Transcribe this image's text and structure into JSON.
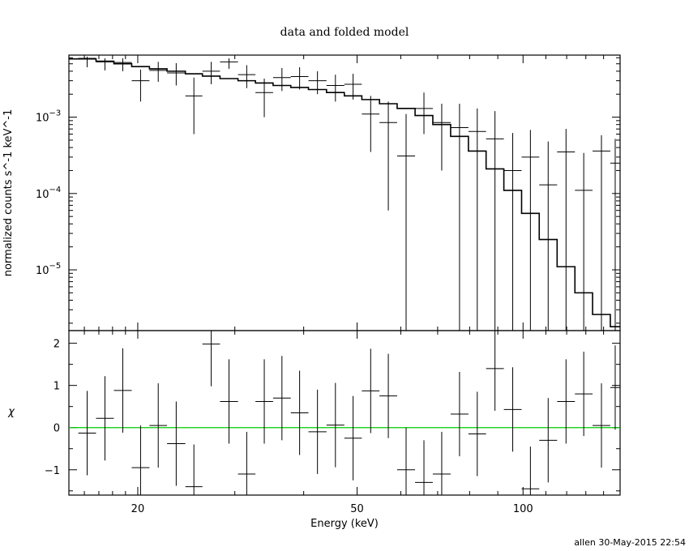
{
  "chart_data": [
    {
      "panel": "top",
      "type": "scatter",
      "title": "data and folded model",
      "ylabel": "normalized counts s^-1 keV^-1",
      "xscale": "log",
      "yscale": "log",
      "xlim": [
        15,
        150
      ],
      "ylim": [
        1.6e-06,
        0.0065
      ],
      "ytick_labels": [
        {
          "value": 0.001,
          "mant": "10",
          "exp": "−3"
        },
        {
          "value": 0.0001,
          "mant": "10",
          "exp": "−4"
        },
        {
          "value": 1e-05,
          "mant": "10",
          "exp": "−5"
        }
      ],
      "data_points": [
        [
          15.6,
          16.8,
          0.0059,
          0.0045,
          0.0062
        ],
        [
          16.8,
          18.1,
          0.0053,
          0.0041,
          0.0059
        ],
        [
          18.1,
          19.5,
          0.0052,
          0.004,
          0.0059
        ],
        [
          19.5,
          21.0,
          0.003,
          0.0016,
          0.0042
        ],
        [
          21.0,
          22.6,
          0.0041,
          0.0029,
          0.0053
        ],
        [
          22.6,
          24.4,
          0.0038,
          0.0026,
          0.0051
        ],
        [
          24.4,
          26.2,
          0.0019,
          0.0006,
          0.0033
        ],
        [
          26.2,
          28.2,
          0.004,
          0.0027,
          0.0053
        ],
        [
          28.2,
          30.4,
          0.0053,
          0.0043,
          0.0059
        ],
        [
          30.4,
          32.7,
          0.0036,
          0.0024,
          0.0048
        ],
        [
          32.7,
          35.2,
          0.0021,
          0.001,
          0.0032
        ],
        [
          35.2,
          37.9,
          0.0033,
          0.0022,
          0.0044
        ],
        [
          37.9,
          40.8,
          0.0034,
          0.0023,
          0.0045
        ],
        [
          40.8,
          44.0,
          0.003,
          0.002,
          0.004
        ],
        [
          44.0,
          47.4,
          0.0026,
          0.0016,
          0.0036
        ],
        [
          47.4,
          51.0,
          0.0027,
          0.0017,
          0.0037
        ],
        [
          51.0,
          54.9,
          0.0011,
          0.00035,
          0.0019
        ],
        [
          54.9,
          59.1,
          0.00085,
          6e-05,
          0.0016
        ],
        [
          59.1,
          63.7,
          0.00031,
          1.6e-06,
          0.0011
        ],
        [
          63.7,
          68.6,
          0.0013,
          0.0006,
          0.0021
        ],
        [
          68.6,
          73.9,
          0.00085,
          0.0002,
          0.0015
        ],
        [
          73.9,
          79.6,
          0.00073,
          1.6e-06,
          0.0015
        ],
        [
          79.6,
          85.7,
          0.00065,
          1.6e-06,
          0.0013
        ],
        [
          85.7,
          92.3,
          0.00052,
          1.6e-06,
          0.0012
        ],
        [
          92.3,
          99.4,
          0.0002,
          1.6e-06,
          0.00062
        ],
        [
          99.4,
          107.0,
          0.0003,
          1.6e-06,
          0.00068
        ],
        [
          107.0,
          115.3,
          0.00013,
          1.6e-06,
          0.00048
        ],
        [
          115.3,
          124.2,
          0.00035,
          1.6e-06,
          0.0007
        ],
        [
          124.2,
          133.7,
          0.00011,
          1.6e-06,
          0.00034
        ],
        [
          133.7,
          144.0,
          0.00036,
          1.6e-06,
          0.00058
        ],
        [
          144.0,
          150.0,
          0.00025,
          1.6e-06,
          0.00052
        ]
      ],
      "model_steps": [
        [
          15.0,
          0.0058
        ],
        [
          16.8,
          0.0054
        ],
        [
          18.1,
          0.005
        ],
        [
          19.5,
          0.0046
        ],
        [
          21.0,
          0.0043
        ],
        [
          22.6,
          0.004
        ],
        [
          24.4,
          0.0037
        ],
        [
          26.2,
          0.00345
        ],
        [
          28.2,
          0.0032
        ],
        [
          30.4,
          0.003
        ],
        [
          32.7,
          0.0028
        ],
        [
          35.2,
          0.0026
        ],
        [
          37.9,
          0.00245
        ],
        [
          40.8,
          0.0023
        ],
        [
          44.0,
          0.0021
        ],
        [
          47.4,
          0.0019
        ],
        [
          51.0,
          0.0017
        ],
        [
          54.9,
          0.0015
        ],
        [
          59.1,
          0.0013
        ],
        [
          63.7,
          0.00105
        ],
        [
          68.6,
          0.0008
        ],
        [
          73.9,
          0.00056
        ],
        [
          79.6,
          0.00036
        ],
        [
          85.7,
          0.00021
        ],
        [
          92.3,
          0.00011
        ],
        [
          99.4,
          5.5e-05
        ],
        [
          107.0,
          2.5e-05
        ],
        [
          115.3,
          1.1e-05
        ],
        [
          124.2,
          5e-06
        ],
        [
          133.7,
          2.6e-06
        ],
        [
          144.0,
          1.8e-06
        ],
        [
          150.0,
          1.8e-06
        ]
      ]
    },
    {
      "panel": "bottom",
      "type": "scatter",
      "xlabel": "Energy (keV)",
      "ylabel": "χ",
      "xscale": "log",
      "xlim": [
        15,
        150
      ],
      "ylim": [
        -1.6,
        2.3
      ],
      "xticks": [
        20,
        50,
        100
      ],
      "yticks": [
        -1,
        0,
        1,
        2
      ],
      "zero_line_color": "#00cc00",
      "residuals": [
        [
          15.6,
          16.8,
          -0.13
        ],
        [
          16.8,
          18.1,
          0.22
        ],
        [
          18.1,
          19.5,
          0.88
        ],
        [
          19.5,
          21.0,
          -0.95
        ],
        [
          21.0,
          22.6,
          0.05
        ],
        [
          22.6,
          24.4,
          -0.38
        ],
        [
          24.4,
          26.2,
          -1.4
        ],
        [
          26.2,
          28.2,
          1.98
        ],
        [
          28.2,
          30.4,
          0.62
        ],
        [
          30.4,
          32.7,
          -1.1
        ],
        [
          32.7,
          35.2,
          0.62
        ],
        [
          35.2,
          37.9,
          0.7
        ],
        [
          37.9,
          40.8,
          0.35
        ],
        [
          40.8,
          44.0,
          -0.1
        ],
        [
          44.0,
          47.4,
          0.06
        ],
        [
          47.4,
          51.0,
          -0.25
        ],
        [
          51.0,
          54.9,
          0.87
        ],
        [
          54.9,
          59.1,
          0.75
        ],
        [
          59.1,
          63.7,
          -1.0
        ],
        [
          63.7,
          68.6,
          -1.3
        ],
        [
          68.6,
          73.9,
          -1.1
        ],
        [
          73.9,
          79.6,
          0.32
        ],
        [
          79.6,
          85.7,
          -0.15
        ],
        [
          85.7,
          92.3,
          1.4
        ],
        [
          92.3,
          99.4,
          0.43
        ],
        [
          99.4,
          107.0,
          -1.45
        ],
        [
          107.0,
          115.3,
          -0.3
        ],
        [
          115.3,
          124.2,
          0.62
        ],
        [
          124.2,
          133.7,
          0.8
        ],
        [
          133.7,
          144.0,
          0.05
        ],
        [
          144.0,
          150.0,
          0.95
        ]
      ]
    }
  ],
  "footer": {
    "stamp": "allen 30-May-2015 22:54"
  },
  "colors": {
    "axes": "#000000",
    "data": "#000000",
    "zero_line": "#00cc00"
  }
}
